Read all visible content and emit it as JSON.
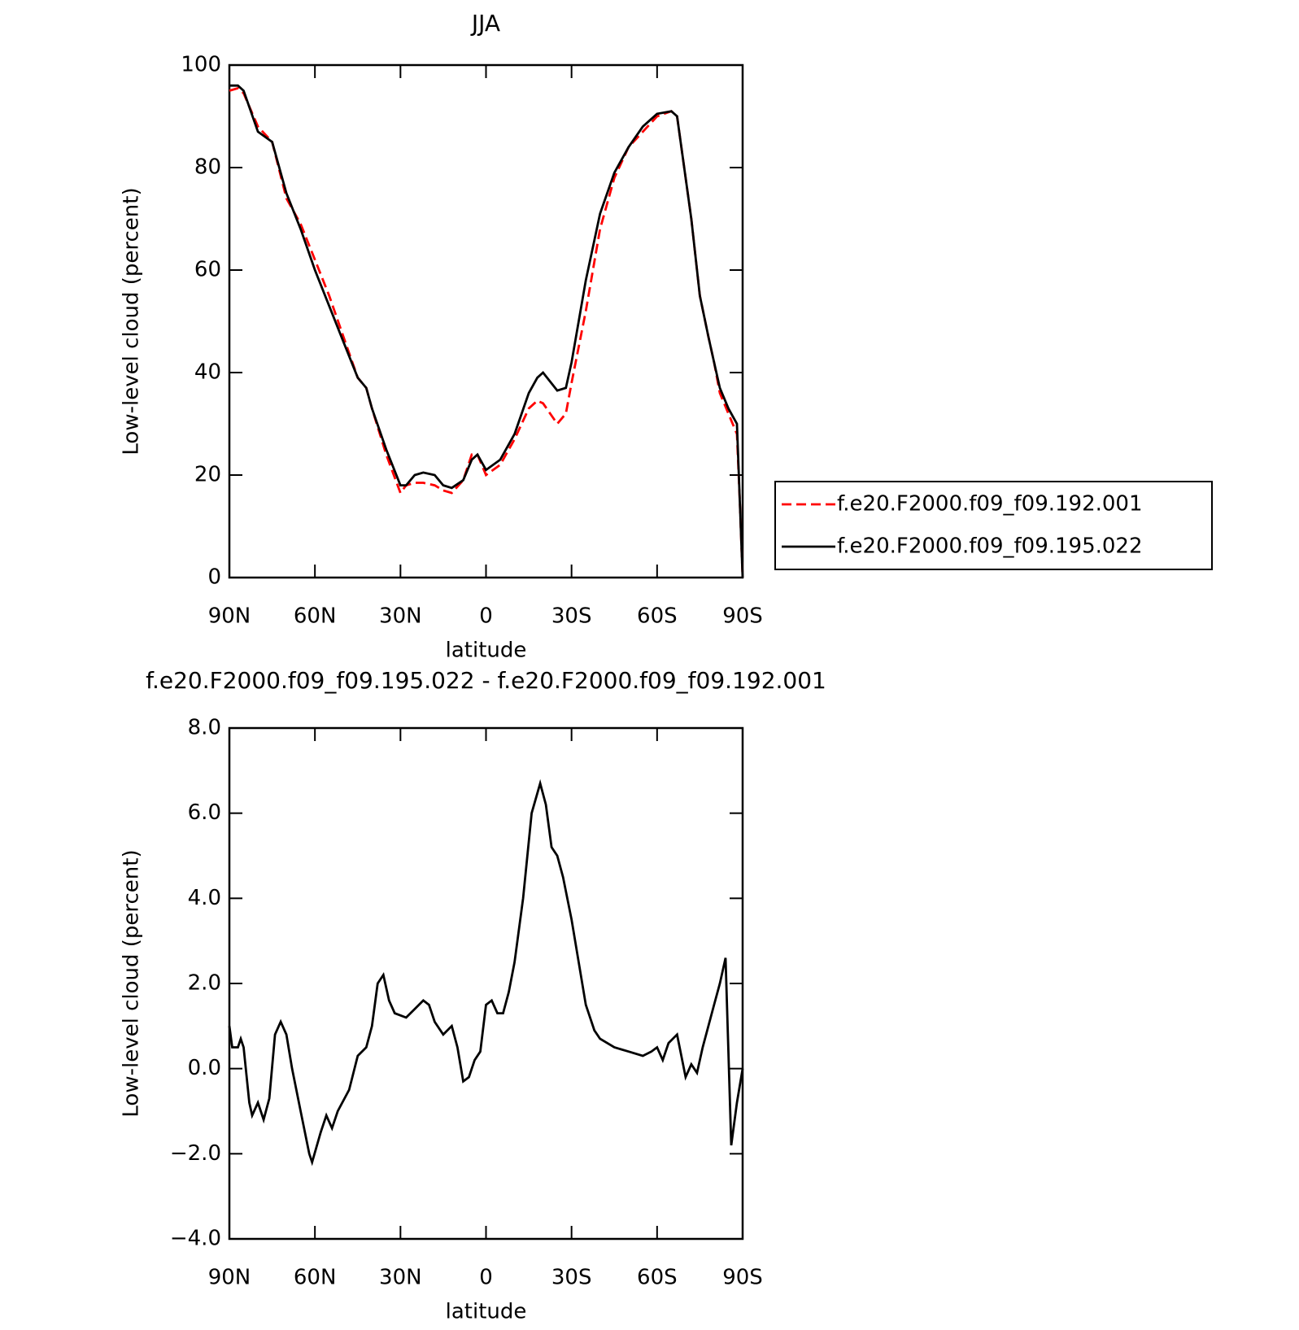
{
  "chart_data": [
    {
      "type": "line",
      "title": "JJA",
      "xlabel": "latitude",
      "ylabel": "Low-level cloud (percent)",
      "x": [
        90,
        87,
        85,
        80,
        75,
        70,
        65,
        60,
        55,
        50,
        45,
        42,
        40,
        35,
        30,
        28,
        25,
        22,
        18,
        15,
        12,
        8,
        5,
        3,
        0,
        -5,
        -10,
        -15,
        -18,
        -20,
        -25,
        -28,
        -30,
        -35,
        -40,
        -45,
        -50,
        -55,
        -60,
        -65,
        -67,
        -70,
        -72,
        -75,
        -78,
        -80,
        -82,
        -85,
        -88,
        -89,
        -90
      ],
      "series": [
        {
          "name": "f.e20.F2000.f09_f09.192.001",
          "color": "#ff0000",
          "dash": true,
          "values": [
            95,
            95.5,
            94.5,
            88,
            85,
            74,
            69,
            62,
            55,
            47,
            39,
            37,
            33,
            24,
            16.5,
            18,
            18.5,
            18.5,
            18,
            17,
            16.5,
            19,
            24,
            24,
            20,
            22,
            27,
            33,
            34.5,
            34,
            30,
            32,
            38,
            52,
            68,
            78,
            84,
            87,
            90,
            91,
            90,
            78,
            70,
            55,
            47,
            42,
            36,
            32,
            28,
            15,
            0
          ]
        },
        {
          "name": "f.e20.F2000.f09_f09.195.022",
          "color": "#000000",
          "dash": false,
          "values": [
            96,
            96,
            95,
            87,
            85,
            75,
            68,
            60,
            53,
            46,
            39,
            37,
            33,
            25,
            18,
            18,
            20,
            20.5,
            20,
            18,
            17.5,
            19,
            23,
            24,
            21,
            23,
            28,
            36,
            39,
            40,
            36.5,
            37,
            42,
            58,
            71,
            79,
            84,
            88,
            90.5,
            91,
            90,
            78,
            70,
            55,
            47,
            42,
            37,
            33,
            30,
            15,
            0
          ]
        }
      ],
      "xlim": [
        90,
        -90
      ],
      "xticks": [
        {
          "value": 90,
          "label": "90N"
        },
        {
          "value": 60,
          "label": "60N"
        },
        {
          "value": 30,
          "label": "30N"
        },
        0,
        {
          "value": -30,
          "label": "30S"
        },
        {
          "value": -60,
          "label": "60S"
        },
        {
          "value": -90,
          "label": "90S"
        }
      ],
      "ylim": [
        0,
        100
      ],
      "yticks": [
        0,
        20,
        40,
        60,
        80,
        100
      ]
    },
    {
      "type": "line",
      "title": "f.e20.F2000.f09_f09.195.022 - f.e20.F2000.f09_f09.192.001",
      "xlabel": "latitude",
      "ylabel": "Low-level cloud (percent)",
      "x": [
        90,
        89,
        87,
        86,
        85,
        83,
        82,
        80,
        78,
        76,
        74,
        72,
        70,
        68,
        65,
        62,
        61,
        58,
        56,
        54,
        52,
        48,
        45,
        42,
        40,
        38,
        36,
        34,
        32,
        28,
        25,
        22,
        20,
        18,
        15,
        12,
        10,
        8,
        6,
        4,
        2,
        0,
        -2,
        -4,
        -6,
        -8,
        -10,
        -13,
        -16,
        -19,
        -21,
        -23,
        -25,
        -27,
        -30,
        -35,
        -38,
        -40,
        -45,
        -50,
        -55,
        -58,
        -60,
        -62,
        -64,
        -67,
        -70,
        -72,
        -74,
        -76,
        -80,
        -82,
        -84,
        -86,
        -88,
        -90
      ],
      "color": "#000000",
      "values": [
        1.0,
        0.5,
        0.5,
        0.7,
        0.5,
        -0.8,
        -1.1,
        -0.8,
        -1.2,
        -0.7,
        0.8,
        1.1,
        0.8,
        0.0,
        -1.0,
        -2.0,
        -2.2,
        -1.5,
        -1.1,
        -1.4,
        -1.0,
        -0.5,
        0.3,
        0.5,
        1.0,
        2.0,
        2.2,
        1.6,
        1.3,
        1.2,
        1.4,
        1.6,
        1.5,
        1.1,
        0.8,
        1.0,
        0.5,
        -0.3,
        -0.2,
        0.2,
        0.4,
        1.5,
        1.6,
        1.3,
        1.3,
        1.8,
        2.5,
        4.0,
        6.0,
        6.7,
        6.2,
        5.2,
        5.0,
        4.5,
        3.5,
        1.5,
        0.9,
        0.7,
        0.5,
        0.4,
        0.3,
        0.4,
        0.5,
        0.2,
        0.6,
        0.8,
        -0.2,
        0.1,
        -0.1,
        0.5,
        1.5,
        2.0,
        2.6,
        -1.8,
        -0.8,
        0.0
      ],
      "xlim": [
        90,
        -90
      ],
      "xticks": [
        {
          "value": 90,
          "label": "90N"
        },
        {
          "value": 60,
          "label": "60N"
        },
        {
          "value": 30,
          "label": "30N"
        },
        0,
        {
          "value": -30,
          "label": "30S"
        },
        {
          "value": -60,
          "label": "60S"
        },
        {
          "value": -90,
          "label": "90S"
        }
      ],
      "ylim": [
        -4,
        8
      ],
      "yticks": [
        {
          "value": -4,
          "label": "−4.0"
        },
        {
          "value": -2,
          "label": "−2.0"
        },
        {
          "value": 0,
          "label": "0.0"
        },
        {
          "value": 2,
          "label": "2.0"
        },
        {
          "value": 4,
          "label": "4.0"
        },
        {
          "value": 6,
          "label": "6.0"
        },
        {
          "value": 8,
          "label": "8.0"
        }
      ]
    }
  ]
}
